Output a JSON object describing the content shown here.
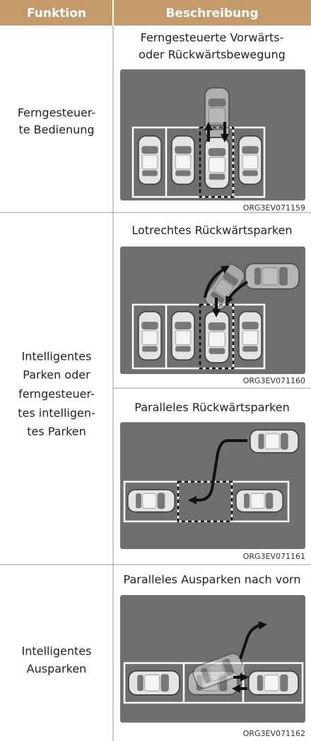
{
  "header": {
    "columns": [
      "Funktion",
      "Beschreibung"
    ]
  },
  "rows": [
    {
      "function": [
        "Ferngesteuer-",
        "te Bedienung"
      ],
      "descriptions": [
        {
          "title": [
            "Ferngesteuerte Vorwärts-",
            "oder Rückwärtsbewegung"
          ],
          "image_code": "ORG3EV071159"
        }
      ]
    },
    {
      "function": [
        "Intelligentes",
        "Parken oder",
        "ferngesteuer-",
        "tes intelligen-",
        "tes Parken"
      ],
      "descriptions": [
        {
          "title": [
            "Lotrechtes Rückwärtsparken"
          ],
          "image_code": "ORG3EV071160"
        },
        {
          "title": [
            "Paralleles Rückwärtsparken"
          ],
          "image_code": "ORG3EV071161"
        }
      ]
    },
    {
      "function": [
        "Intelligentes",
        "Ausparken"
      ],
      "descriptions": [
        {
          "title": [
            "Paralleles Ausparken nach vorn"
          ],
          "image_code": "ORG3EV071162"
        }
      ]
    }
  ]
}
